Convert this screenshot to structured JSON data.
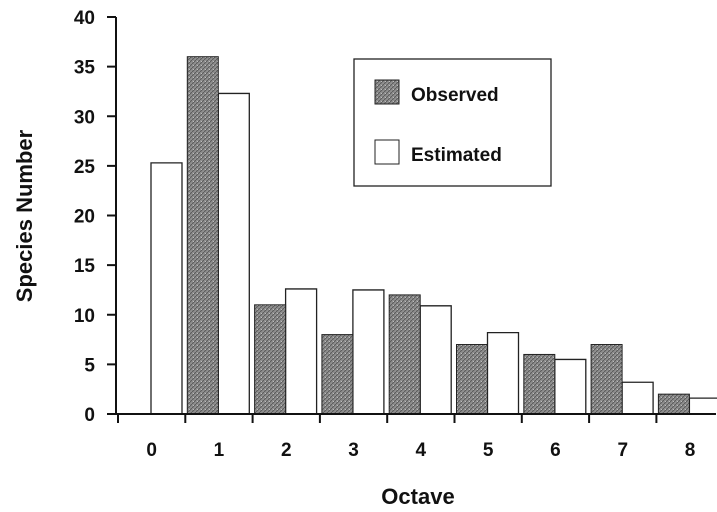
{
  "chart_data": {
    "type": "bar",
    "title": "",
    "xlabel": "Octave",
    "ylabel": "Species Number",
    "categories": [
      "0",
      "1",
      "2",
      "3",
      "4",
      "5",
      "6",
      "7",
      "8"
    ],
    "ylim": [
      0,
      40
    ],
    "yticks": [
      "0",
      "5",
      "10",
      "15",
      "20",
      "25",
      "30",
      "35",
      "40"
    ],
    "grid": false,
    "legend_position": "top-right",
    "series": [
      {
        "name": "Observed",
        "values": [
          0,
          36,
          11,
          8,
          12,
          7,
          6,
          7,
          2
        ],
        "fill": "#8c8c8c",
        "style": "hatched"
      },
      {
        "name": "Estimated",
        "values": [
          25.3,
          32.3,
          12.6,
          12.5,
          10.9,
          8.2,
          5.5,
          3.2,
          1.6
        ],
        "fill": "#ffffff",
        "style": "outline"
      }
    ]
  }
}
